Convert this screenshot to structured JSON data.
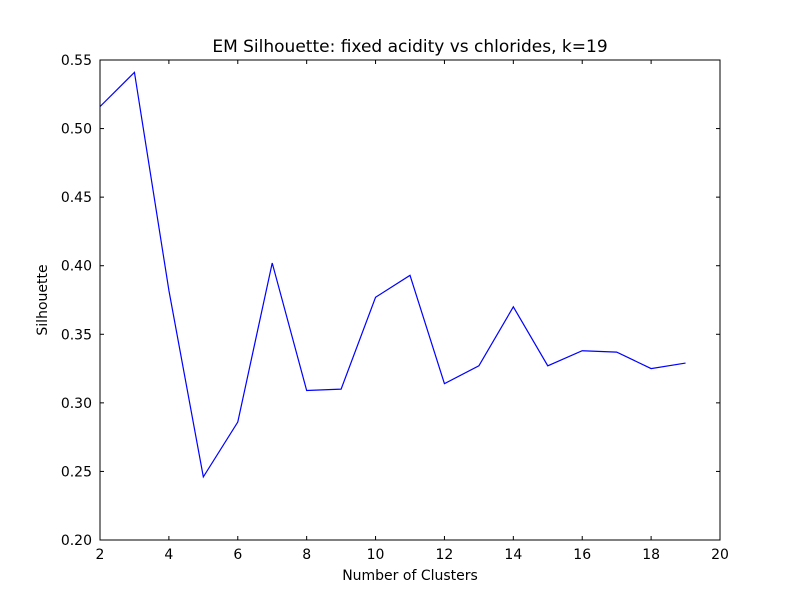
{
  "chart_data": {
    "type": "line",
    "title": "EM Silhouette: fixed acidity vs chlorides, k=19",
    "xlabel": "Number of Clusters",
    "ylabel": "Silhouette",
    "xlim": [
      2,
      20
    ],
    "ylim": [
      0.2,
      0.55
    ],
    "x_ticks": [
      2,
      4,
      6,
      8,
      10,
      12,
      14,
      16,
      18,
      20
    ],
    "x_tick_labels": [
      "2",
      "4",
      "6",
      "8",
      "10",
      "12",
      "14",
      "16",
      "18",
      "20"
    ],
    "y_ticks": [
      0.2,
      0.25,
      0.3,
      0.35,
      0.4,
      0.45,
      0.5,
      0.55
    ],
    "y_tick_labels": [
      "0.20",
      "0.25",
      "0.30",
      "0.35",
      "0.40",
      "0.45",
      "0.50",
      "0.55"
    ],
    "grid": false,
    "line_color": "#0000ff",
    "series": [
      {
        "x": [
          2,
          3,
          4,
          5,
          6,
          7,
          8,
          9,
          10,
          11,
          12,
          13,
          14,
          15,
          16,
          17,
          18,
          19
        ],
        "values": [
          0.516,
          0.541,
          0.382,
          0.246,
          0.286,
          0.402,
          0.309,
          0.31,
          0.377,
          0.393,
          0.314,
          0.327,
          0.37,
          0.327,
          0.338,
          0.337,
          0.325,
          0.329
        ]
      }
    ]
  }
}
